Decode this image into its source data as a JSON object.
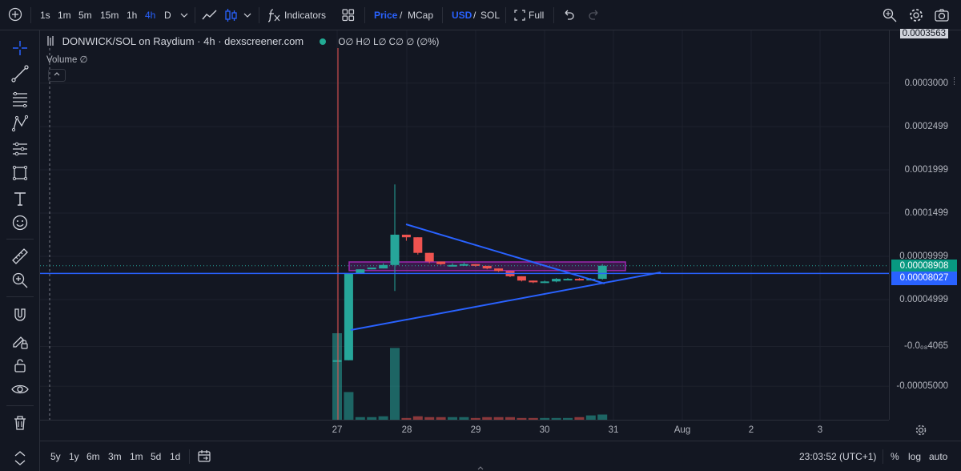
{
  "toolbar": {
    "intervals": [
      "1s",
      "1m",
      "5m",
      "15m",
      "1h",
      "4h",
      "D"
    ],
    "active_interval": "4h",
    "indicators_label": "Indicators",
    "price_label": "Price",
    "mcap_label": "MCap",
    "slash": "/",
    "usd_label": "USD",
    "sol_label": "SOL",
    "full_label": "Full"
  },
  "legend": {
    "symbol": "DONWICK/SOL on Raydium · 4h · dexscreener.com",
    "ohlc": "O∅ H∅ L∅ C∅ ∅ (∅%)",
    "volume": "Volume  ∅"
  },
  "y_axis": {
    "ticks": [
      "0.0003563",
      "0.0003000",
      "0.0002499",
      "0.0001999",
      "0.0001499",
      "0.00009999",
      "0.00004999",
      "-0.0₀₈4065",
      "-0.00005000"
    ],
    "last_price_label": "0.00008908",
    "crosshair_price_label": "0.00008027"
  },
  "x_axis": {
    "ticks": [
      "27",
      "28",
      "29",
      "30",
      "31",
      "Aug",
      "2",
      "3"
    ]
  },
  "bottom": {
    "ranges": [
      "5y",
      "1y",
      "6m",
      "3m",
      "1m",
      "5d",
      "1d"
    ],
    "time": "23:03:52 (UTC+1)",
    "percent_label": "%",
    "log_label": "log",
    "auto_label": "auto"
  },
  "colors": {
    "up": "#26a69a",
    "down": "#ef5350",
    "trendline": "#2962ff",
    "zone": "#9c27b0",
    "background": "#131722"
  },
  "chart_data": {
    "type": "candlestick",
    "timeframe": "4h",
    "candles": [
      {
        "t": "Jul 27 04:00",
        "o": -2e-05,
        "h": -2e-05,
        "l": -2e-05,
        "c": -2e-05
      },
      {
        "t": "Jul 27 08:00",
        "o": -2e-05,
        "h": 8e-05,
        "l": -2e-05,
        "c": 8e-05
      },
      {
        "t": "Jul 27 12:00",
        "o": 8e-05,
        "h": 8.5e-05,
        "l": 8e-05,
        "c": 8.5e-05
      },
      {
        "t": "Jul 27 16:00",
        "o": 8.5e-05,
        "h": 8.7e-05,
        "l": 8.5e-05,
        "c": 8.7e-05
      },
      {
        "t": "Jul 27 20:00",
        "o": 8.6e-05,
        "h": 9.2e-05,
        "l": 8.6e-05,
        "c": 9e-05
      },
      {
        "t": "Jul 28 00:00",
        "o": 9e-05,
        "h": 0.000183,
        "l": 6e-05,
        "c": 0.000125
      },
      {
        "t": "Jul 28 04:00",
        "o": 0.000125,
        "h": 0.000125,
        "l": 0.000118,
        "c": 0.000122
      },
      {
        "t": "Jul 28 08:00",
        "o": 0.000122,
        "h": 0.000122,
        "l": 0.000102,
        "c": 0.000104
      },
      {
        "t": "Jul 28 12:00",
        "o": 0.000104,
        "h": 0.000104,
        "l": 9.2e-05,
        "c": 9.4e-05
      },
      {
        "t": "Jul 28 16:00",
        "o": 9.4e-05,
        "h": 9.4e-05,
        "l": 9e-05,
        "c": 9.1e-05
      },
      {
        "t": "Jul 28 20:00",
        "o": 9e-05,
        "h": 9.2e-05,
        "l": 8.9e-05,
        "c": 9e-05
      },
      {
        "t": "Jul 29 00:00",
        "o": 9e-05,
        "h": 9.3e-05,
        "l": 8.9e-05,
        "c": 9.1e-05
      },
      {
        "t": "Jul 29 04:00",
        "o": 9.1e-05,
        "h": 9.1e-05,
        "l": 8.8e-05,
        "c": 8.9e-05
      },
      {
        "t": "Jul 29 08:00",
        "o": 8.9e-05,
        "h": 8.9e-05,
        "l": 8.5e-05,
        "c": 8.6e-05
      },
      {
        "t": "Jul 29 12:00",
        "o": 8.6e-05,
        "h": 8.6e-05,
        "l": 8.2e-05,
        "c": 8.3e-05
      },
      {
        "t": "Jul 29 16:00",
        "o": 8.3e-05,
        "h": 8.3e-05,
        "l": 7.6e-05,
        "c": 7.7e-05
      },
      {
        "t": "Jul 29 20:00",
        "o": 7.7e-05,
        "h": 7.7e-05,
        "l": 7.1e-05,
        "c": 7.2e-05
      },
      {
        "t": "Jul 30 00:00",
        "o": 7.2e-05,
        "h": 7.2e-05,
        "l": 6.9e-05,
        "c": 7e-05
      },
      {
        "t": "Jul 30 04:00",
        "o": 7e-05,
        "h": 7.2e-05,
        "l": 6.9e-05,
        "c": 7.1e-05
      },
      {
        "t": "Jul 30 08:00",
        "o": 7.1e-05,
        "h": 7.5e-05,
        "l": 7e-05,
        "c": 7.4e-05
      },
      {
        "t": "Jul 30 12:00",
        "o": 7.4e-05,
        "h": 7.5e-05,
        "l": 7.3e-05,
        "c": 7.4e-05
      },
      {
        "t": "Jul 30 16:00",
        "o": 7.4e-05,
        "h": 7.5e-05,
        "l": 7.2e-05,
        "c": 7.3e-05
      },
      {
        "t": "Jul 30 20:00",
        "o": 7.3e-05,
        "h": 7.5e-05,
        "l": 7.2e-05,
        "c": 7.4e-05
      },
      {
        "t": "Jul 31 00:00",
        "o": 7.4e-05,
        "h": 9.1e-05,
        "l": 7.3e-05,
        "c": 8.91e-05
      }
    ],
    "volume_relative": [
      1.0,
      0.32,
      0.03,
      0.03,
      0.04,
      0.83,
      0.02,
      0.04,
      0.03,
      0.03,
      0.03,
      0.03,
      0.02,
      0.03,
      0.03,
      0.03,
      0.02,
      0.02,
      0.02,
      0.02,
      0.02,
      0.03,
      0.05,
      0.06
    ],
    "ylim": [
      -6.5e-05,
      0.00036
    ],
    "last_price": 8.908e-05,
    "crosshair_price": 8.027e-05,
    "x_ticks": [
      "27",
      "28",
      "29",
      "30",
      "31",
      "Aug",
      "2",
      "3"
    ]
  }
}
